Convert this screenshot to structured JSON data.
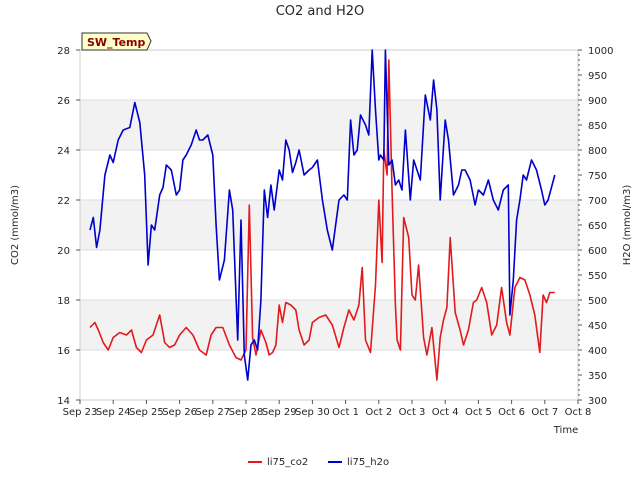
{
  "chart_data": {
    "type": "line",
    "title": "CO2 and H2O",
    "xlabel": "Time",
    "ylabel": "CO2 (mmol/m3)",
    "ylabel_right": "H2O (mmol/m3)",
    "xlim": [
      0,
      15
    ],
    "ylim": [
      14,
      28
    ],
    "ylim_right": [
      300,
      1000
    ],
    "x_ticks": [
      {
        "value": 0,
        "label": "Sep 23"
      },
      {
        "value": 1,
        "label": "Sep 24"
      },
      {
        "value": 2,
        "label": "Sep 25"
      },
      {
        "value": 3,
        "label": "Sep 26"
      },
      {
        "value": 4,
        "label": "Sep 27"
      },
      {
        "value": 5,
        "label": "Sep 28"
      },
      {
        "value": 6,
        "label": "Sep 29"
      },
      {
        "value": 7,
        "label": "Sep 30"
      },
      {
        "value": 8,
        "label": "Oct 1"
      },
      {
        "value": 9,
        "label": "Oct 2"
      },
      {
        "value": 10,
        "label": "Oct 3"
      },
      {
        "value": 11,
        "label": "Oct 4"
      },
      {
        "value": 12,
        "label": "Oct 5"
      },
      {
        "value": 13,
        "label": "Oct 6"
      },
      {
        "value": 14,
        "label": "Oct 7"
      },
      {
        "value": 15,
        "label": "Oct 8"
      }
    ],
    "y_ticks_left": [
      14,
      16,
      18,
      20,
      22,
      24,
      26,
      28
    ],
    "y_ticks_right": [
      300,
      350,
      400,
      450,
      500,
      550,
      600,
      650,
      700,
      750,
      800,
      850,
      900,
      950,
      1000
    ],
    "tag": "SW_Temp",
    "legend_position": "bottom-center",
    "series": [
      {
        "name": "li75_co2",
        "axis": "left",
        "color": "#e31a1c",
        "x": [
          0.3,
          0.45,
          0.55,
          0.7,
          0.85,
          1.0,
          1.2,
          1.4,
          1.55,
          1.7,
          1.85,
          2.0,
          2.2,
          2.4,
          2.55,
          2.7,
          2.85,
          3.0,
          3.2,
          3.4,
          3.6,
          3.8,
          3.95,
          4.1,
          4.3,
          4.5,
          4.7,
          4.85,
          5.0,
          5.1,
          5.2,
          5.3,
          5.45,
          5.6,
          5.7,
          5.8,
          5.9,
          6.0,
          6.1,
          6.2,
          6.35,
          6.5,
          6.6,
          6.75,
          6.9,
          7.0,
          7.2,
          7.4,
          7.6,
          7.8,
          7.95,
          8.1,
          8.25,
          8.4,
          8.5,
          8.6,
          8.75,
          8.9,
          9.0,
          9.1,
          9.15,
          9.25,
          9.3,
          9.4,
          9.5,
          9.55,
          9.65,
          9.75,
          9.9,
          10.0,
          10.1,
          10.2,
          10.35,
          10.45,
          10.6,
          10.75,
          10.85,
          10.95,
          11.05,
          11.15,
          11.3,
          11.45,
          11.55,
          11.7,
          11.85,
          11.95,
          12.1,
          12.25,
          12.4,
          12.55,
          12.7,
          12.85,
          12.95,
          13.1,
          13.25,
          13.4,
          13.55,
          13.7,
          13.85,
          13.95,
          14.05,
          14.15,
          14.3
        ],
        "values": [
          16.9,
          17.1,
          16.8,
          16.3,
          16.0,
          16.5,
          16.7,
          16.6,
          16.8,
          16.1,
          15.9,
          16.4,
          16.6,
          17.4,
          16.3,
          16.1,
          16.2,
          16.6,
          16.9,
          16.6,
          16.0,
          15.8,
          16.6,
          16.9,
          16.9,
          16.2,
          15.7,
          15.6,
          16.0,
          21.8,
          16.5,
          15.8,
          16.8,
          16.3,
          15.8,
          15.9,
          16.2,
          17.8,
          17.1,
          17.9,
          17.8,
          17.6,
          16.8,
          16.2,
          16.4,
          17.1,
          17.3,
          17.4,
          17.0,
          16.1,
          16.9,
          17.6,
          17.2,
          17.8,
          19.3,
          16.4,
          15.9,
          18.6,
          22.0,
          19.5,
          24.0,
          23.0,
          27.6,
          22.3,
          17.8,
          16.4,
          16.0,
          21.3,
          20.5,
          18.2,
          18.0,
          19.4,
          16.5,
          15.8,
          16.9,
          14.8,
          16.5,
          17.2,
          17.7,
          20.5,
          17.5,
          16.8,
          16.2,
          16.8,
          17.9,
          18.0,
          18.5,
          17.9,
          16.6,
          17.0,
          18.5,
          17.1,
          16.6,
          18.5,
          18.9,
          18.8,
          18.2,
          17.4,
          15.9,
          18.2,
          17.9,
          18.3,
          18.3
        ]
      },
      {
        "name": "li75_h2o",
        "axis": "right",
        "color": "#0000cc",
        "x": [
          0.3,
          0.4,
          0.5,
          0.6,
          0.75,
          0.9,
          1.0,
          1.15,
          1.3,
          1.5,
          1.65,
          1.8,
          1.95,
          2.05,
          2.15,
          2.25,
          2.4,
          2.5,
          2.6,
          2.75,
          2.9,
          3.0,
          3.1,
          3.2,
          3.35,
          3.5,
          3.6,
          3.7,
          3.85,
          4.0,
          4.1,
          4.2,
          4.35,
          4.5,
          4.6,
          4.75,
          4.85,
          4.95,
          5.05,
          5.15,
          5.25,
          5.35,
          5.45,
          5.55,
          5.65,
          5.75,
          5.85,
          6.0,
          6.1,
          6.2,
          6.3,
          6.4,
          6.5,
          6.6,
          6.75,
          6.9,
          7.0,
          7.15,
          7.3,
          7.45,
          7.6,
          7.8,
          7.95,
          8.05,
          8.15,
          8.25,
          8.35,
          8.45,
          8.6,
          8.7,
          8.8,
          8.9,
          9.0,
          9.05,
          9.15,
          9.2,
          9.3,
          9.4,
          9.5,
          9.6,
          9.7,
          9.8,
          9.95,
          10.05,
          10.15,
          10.25,
          10.4,
          10.55,
          10.65,
          10.75,
          10.85,
          11.0,
          11.1,
          11.25,
          11.4,
          11.5,
          11.6,
          11.75,
          11.9,
          12.0,
          12.15,
          12.3,
          12.45,
          12.6,
          12.75,
          12.9,
          12.95,
          13.05,
          13.15,
          13.25,
          13.35,
          13.45,
          13.6,
          13.75,
          13.9,
          14.0,
          14.1,
          14.3
        ],
        "values": [
          640,
          665,
          605,
          640,
          750,
          790,
          775,
          820,
          840,
          845,
          895,
          855,
          750,
          570,
          650,
          640,
          710,
          725,
          770,
          760,
          710,
          720,
          780,
          790,
          810,
          840,
          820,
          820,
          830,
          790,
          650,
          540,
          580,
          720,
          680,
          420,
          660,
          390,
          340,
          410,
          420,
          400,
          500,
          720,
          665,
          730,
          680,
          760,
          740,
          820,
          800,
          755,
          775,
          800,
          750,
          760,
          765,
          780,
          700,
          640,
          600,
          700,
          710,
          700,
          860,
          790,
          800,
          870,
          850,
          830,
          1000,
          880,
          780,
          790,
          780,
          1000,
          770,
          780,
          730,
          740,
          720,
          840,
          700,
          780,
          760,
          740,
          910,
          860,
          940,
          880,
          700,
          860,
          820,
          710,
          730,
          760,
          760,
          740,
          690,
          720,
          710,
          740,
          700,
          680,
          720,
          730,
          470,
          540,
          660,
          700,
          750,
          740,
          780,
          760,
          720,
          690,
          700,
          750
        ]
      }
    ]
  }
}
